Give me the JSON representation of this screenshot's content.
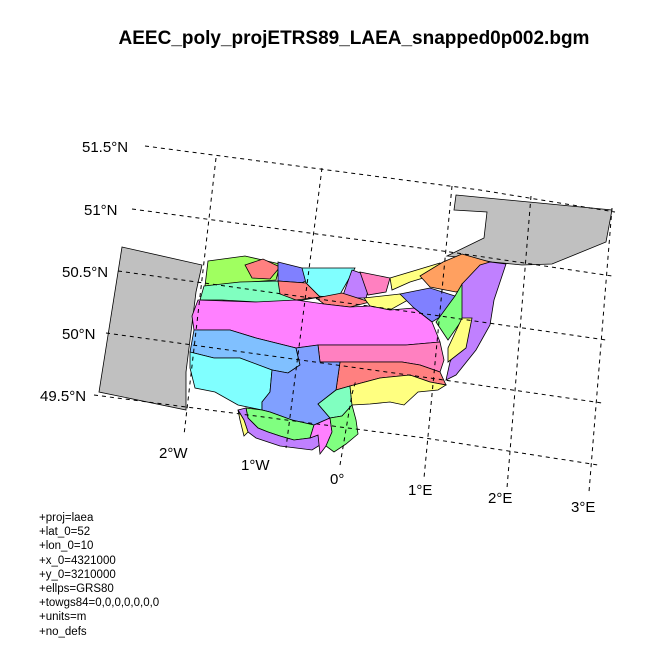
{
  "map": {
    "title": "AEEC_poly_projETRS89_LAEA_snapped0p002.bgm",
    "lat_labels": [
      "51.5°N",
      "51°N",
      "50.5°N",
      "50°N",
      "49.5°N"
    ],
    "lon_labels": [
      "2°W",
      "1°W",
      "0°",
      "1°E",
      "2°E",
      "3°E"
    ],
    "proj_params": [
      "+proj=laea",
      "+lat_0=52",
      "+lon_0=10",
      "+x_0=4321000",
      "+y_0=3210000",
      "+ellps=GRS80",
      "+towgs84=0,0,0,0,0,0,0",
      "+units=m",
      "+no_defs"
    ],
    "colors": {
      "land": "#c0c0c0",
      "magenta": "#ff80ff",
      "pink": "#ff80c0",
      "salmon": "#ff8080",
      "orange": "#ffa060",
      "yellow": "#ffff80",
      "lime": "#a0ff60",
      "green": "#80ff80",
      "aqua": "#80ffc0",
      "cyan": "#80ffff",
      "sky": "#80c0ff",
      "blue": "#8080ff",
      "purple": "#c080ff"
    }
  }
}
